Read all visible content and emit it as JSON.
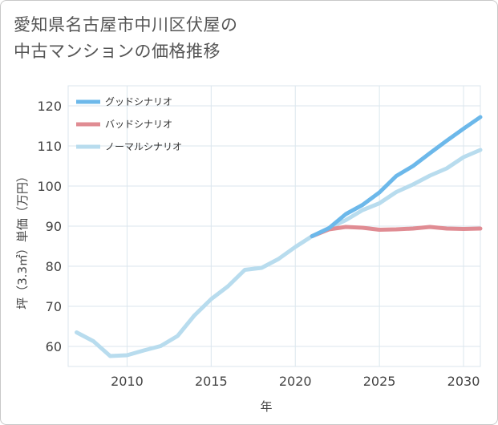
{
  "title_lines": [
    "愛知県名古屋市中川区伏屋の",
    "中古マンションの価格推移"
  ],
  "chart_data": {
    "type": "line",
    "xlabel": "年",
    "ylabel": "坪（3.3㎡）単価（万円）",
    "xlim": [
      2006.5,
      2031
    ],
    "ylim": [
      55,
      125
    ],
    "x_ticks": [
      2010,
      2015,
      2020,
      2025,
      2030
    ],
    "y_ticks": [
      60,
      70,
      80,
      90,
      100,
      110,
      120
    ],
    "grid": true,
    "legend_position": "top-left",
    "series": [
      {
        "name": "グッドシナリオ",
        "color": "#6cb8ea",
        "x": [
          2021,
          2022,
          2023,
          2024,
          2025,
          2026,
          2027,
          2028,
          2029,
          2030,
          2031
        ],
        "y": [
          87.5,
          89.5,
          93.0,
          95.3,
          98.4,
          102.5,
          105.0,
          108.2,
          111.3,
          114.3,
          117.2
        ]
      },
      {
        "name": "バッドシナリオ",
        "color": "#e08c93",
        "x": [
          2021,
          2022,
          2023,
          2024,
          2025,
          2026,
          2027,
          2028,
          2029,
          2030,
          2031
        ],
        "y": [
          87.5,
          89.2,
          89.8,
          89.6,
          89.1,
          89.2,
          89.4,
          89.8,
          89.4,
          89.3,
          89.4
        ]
      },
      {
        "name": "ノーマルシナリオ",
        "color": "#b8dcee",
        "x": [
          2007,
          2008,
          2009,
          2010,
          2011,
          2012,
          2013,
          2014,
          2015,
          2016,
          2017,
          2018,
          2019,
          2020,
          2021,
          2022,
          2023,
          2024,
          2025,
          2026,
          2027,
          2028,
          2029,
          2030,
          2031
        ],
        "y": [
          63.5,
          61.3,
          57.6,
          57.8,
          59.0,
          60.1,
          62.6,
          67.7,
          71.8,
          75.0,
          79.1,
          79.6,
          81.8,
          84.8,
          87.5,
          89.5,
          91.5,
          94.0,
          95.7,
          98.5,
          100.4,
          102.6,
          104.4,
          107.2,
          109.0
        ]
      }
    ]
  }
}
